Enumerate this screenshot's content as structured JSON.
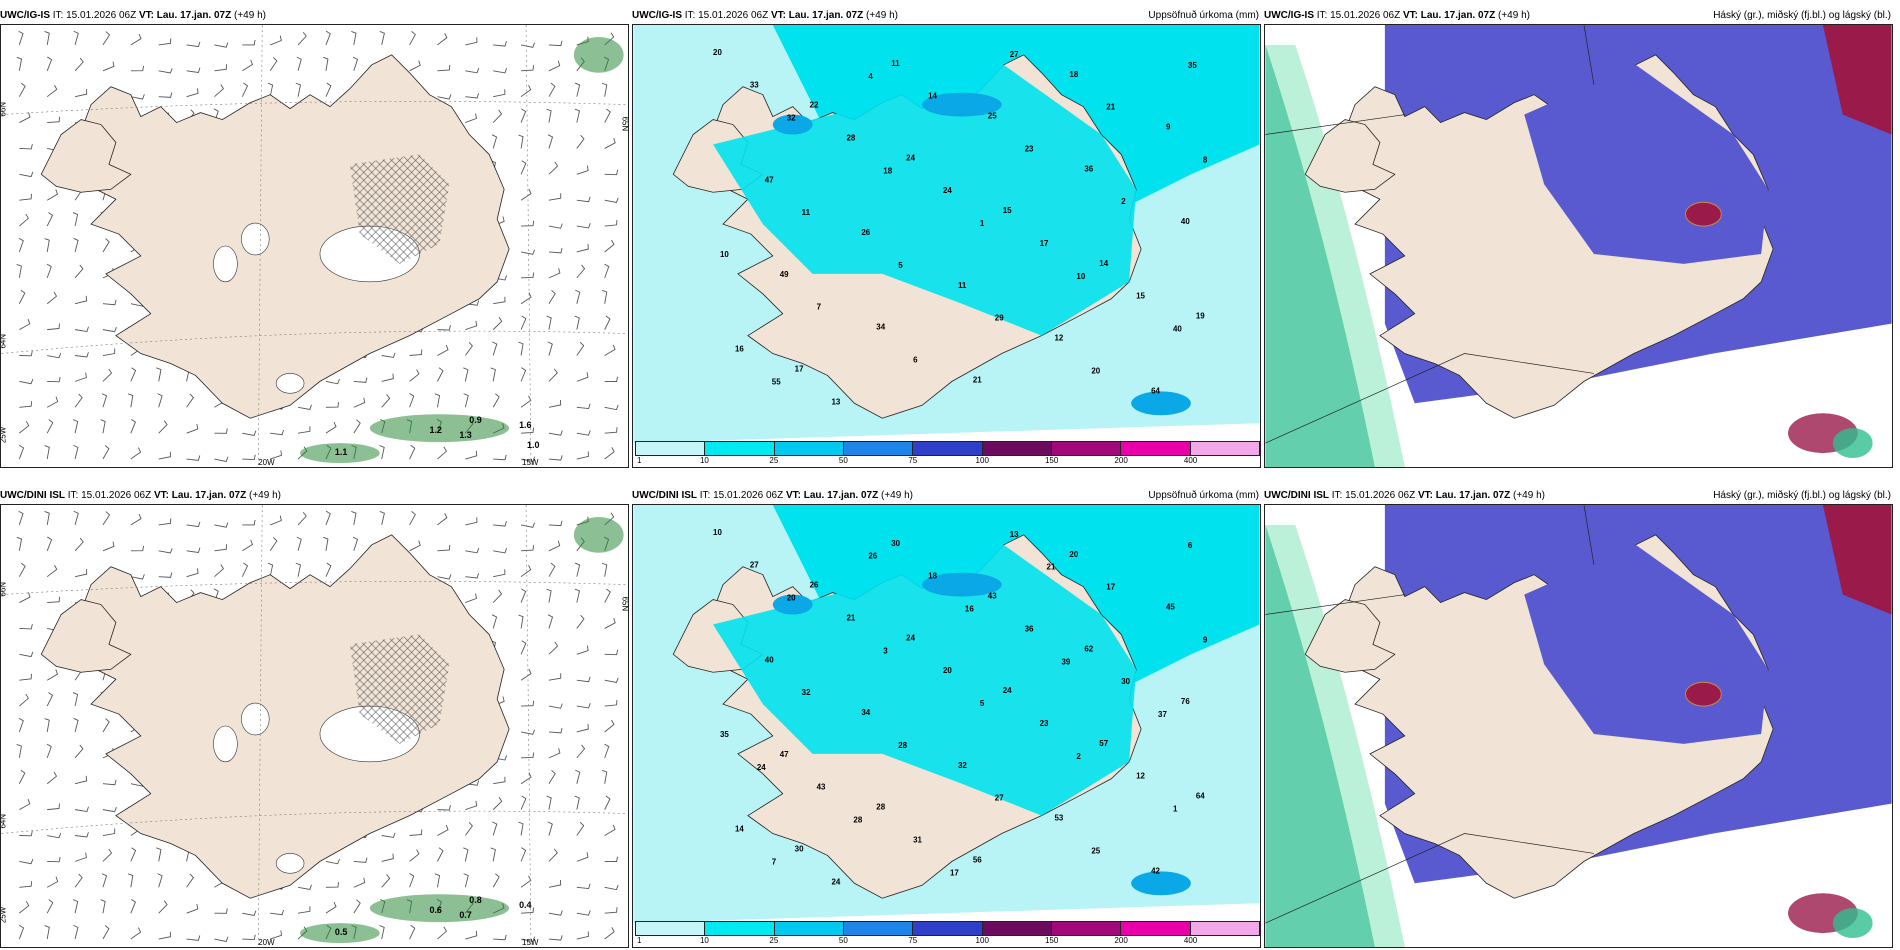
{
  "panels": [
    {
      "id": "p1",
      "model": "UWC/IG-IS",
      "it_label": "IT:",
      "it_value": "15.01.2026 06Z",
      "vt_label": "VT:",
      "vt_value": "Lau. 17.jan. 07Z",
      "lead": "(+49 h)",
      "title_right": "",
      "kind": "wind",
      "grid_labels": [
        "66N",
        "64N",
        "25W",
        "20W",
        "15W",
        "65N"
      ],
      "values": [
        "0.9",
        "1.2",
        "1.3",
        "1.1",
        "1.6",
        "1.0"
      ]
    },
    {
      "id": "p2",
      "model": "UWC/IG-IS",
      "it_label": "IT:",
      "it_value": "15.01.2026 06Z",
      "vt_label": "VT:",
      "vt_value": "Lau. 17.jan. 07Z",
      "lead": "(+49 h)",
      "title_right": "Uppsöfnuð úrkoma (mm)",
      "kind": "precip",
      "values": [
        "20",
        "22",
        "24",
        "15",
        "14",
        "19",
        "17",
        "11",
        "25",
        "36",
        "40",
        "49",
        "34",
        "21",
        "18",
        "9",
        "47",
        "26",
        "11",
        "12",
        "64",
        "33",
        "28",
        "24",
        "17",
        "15",
        "16",
        "13",
        "14",
        "23",
        "2",
        "10",
        "7",
        "6",
        "27",
        "21",
        "8",
        "11",
        "5",
        "29",
        "20",
        "35",
        "32",
        "18",
        "1",
        "10",
        "40",
        "55",
        "4"
      ]
    },
    {
      "id": "p3",
      "model": "UWC/IG-IS",
      "it_label": "IT:",
      "it_value": "15.01.2026 06Z",
      "vt_label": "VT:",
      "vt_value": "Lau. 17.jan. 07Z",
      "lead": "(+49 h)",
      "title_right": "Háský (gr.), miðský (fj.bl.) og lágský (bl.)",
      "kind": "cloud"
    },
    {
      "id": "p4",
      "model": "UWC/DINI ISL",
      "it_label": "IT:",
      "it_value": "15.01.2026 06Z",
      "vt_label": "VT:",
      "vt_value": "Lau. 17.jan. 07Z",
      "lead": "(+49 h)",
      "title_right": "",
      "kind": "wind",
      "grid_labels": [
        "66N",
        "64N",
        "25W",
        "20W",
        "15W",
        "65N"
      ],
      "values": [
        "0.8",
        "0.6",
        "0.7",
        "0.5",
        "0.4"
      ]
    },
    {
      "id": "p5",
      "model": "UWC/DINI ISL",
      "it_label": "IT:",
      "it_value": "15.01.2026 06Z",
      "vt_label": "VT:",
      "vt_value": "Lau. 17.jan. 07Z",
      "lead": "(+49 h)",
      "title_right": "Uppsöfnuð úrkoma (mm)",
      "kind": "precip",
      "values": [
        "10",
        "26",
        "24",
        "24",
        "57",
        "64",
        "30",
        "30",
        "43",
        "62",
        "76",
        "47",
        "28",
        "56",
        "20",
        "45",
        "40",
        "34",
        "32",
        "53",
        "42",
        "27",
        "21",
        "20",
        "23",
        "12",
        "14",
        "24",
        "18",
        "36",
        "30",
        "35",
        "43",
        "31",
        "13",
        "17",
        "9",
        "32",
        "28",
        "27",
        "25",
        "6",
        "20",
        "3",
        "5",
        "2",
        "1",
        "7",
        "26",
        "16",
        "39",
        "37",
        "24",
        "28",
        "17",
        "21"
      ]
    },
    {
      "id": "p6",
      "model": "UWC/DINI ISL",
      "it_label": "IT:",
      "it_value": "15.01.2026 06Z",
      "vt_label": "VT:",
      "vt_value": "Lau. 17.jan. 07Z",
      "lead": "(+49 h)",
      "title_right": "Háský (gr.), miðský (fj.bl.) og lágský (bl.)",
      "kind": "cloud"
    }
  ],
  "colorbar": {
    "ticks": [
      "1",
      "10",
      "25",
      "50",
      "75",
      "100",
      "150",
      "200",
      "400"
    ],
    "colors": [
      "#c4f5f7",
      "#00e8f0",
      "#00c8ee",
      "#1e84e8",
      "#2f3fc8",
      "#6a0b5e",
      "#a00a78",
      "#e800a8",
      "#f2a8e8"
    ]
  },
  "colors": {
    "land": "#f1e4d6",
    "precip_light": "#b8f3f6",
    "precip_mid": "#00e2ee",
    "precip_high": "#0aa8e6",
    "cloud_mid": "#5a5ad0",
    "cloud_high": "#9a1a4a",
    "cloud_green": "#2fbf90",
    "wind_barb": "#555555",
    "precip_green": "#2d8a3a"
  }
}
